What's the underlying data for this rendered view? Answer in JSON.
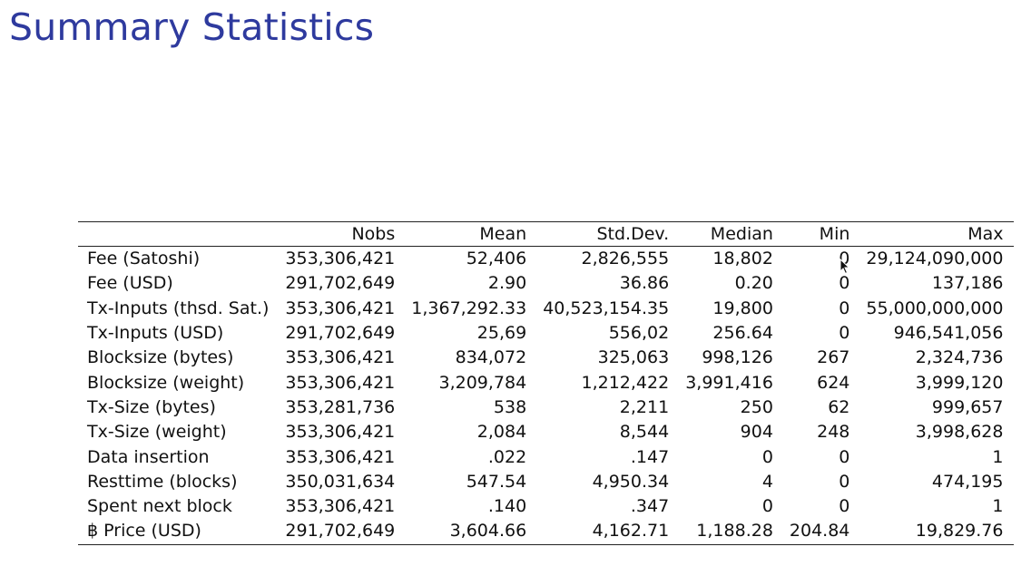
{
  "title": "Summary Statistics",
  "table": {
    "headers": [
      "",
      "Nobs",
      "Mean",
      "Std.Dev.",
      "Median",
      "Min",
      "Max"
    ],
    "rows": [
      [
        "Fee (Satoshi)",
        "353,306,421",
        "52,406",
        "2,826,555",
        "18,802",
        "0",
        "29,124,090,000"
      ],
      [
        "Fee (USD)",
        "291,702,649",
        "2.90",
        "36.86",
        "0.20",
        "0",
        "137,186"
      ],
      [
        "Tx-Inputs (thsd. Sat.)",
        "353,306,421",
        "1,367,292.33",
        "40,523,154.35",
        "19,800",
        "0",
        "55,000,000,000"
      ],
      [
        "Tx-Inputs (USD)",
        "291,702,649",
        "25,69",
        "556,02",
        "256.64",
        "0",
        "946,541,056"
      ],
      [
        "Blocksize (bytes)",
        "353,306,421",
        "834,072",
        "325,063",
        "998,126",
        "267",
        "2,324,736"
      ],
      [
        "Blocksize (weight)",
        "353,306,421",
        "3,209,784",
        "1,212,422",
        "3,991,416",
        "624",
        "3,999,120"
      ],
      [
        "Tx-Size (bytes)",
        "353,281,736",
        "538",
        "2,211",
        "250",
        "62",
        "999,657"
      ],
      [
        "Tx-Size (weight)",
        "353,306,421",
        "2,084",
        "8,544",
        "904",
        "248",
        "3,998,628"
      ],
      [
        "Data insertion",
        "353,306,421",
        ".022",
        ".147",
        "0",
        "0",
        "1"
      ],
      [
        "Resttime (blocks)",
        "350,031,634",
        "547.54",
        "4,950.34",
        "4",
        "0",
        "474,195"
      ],
      [
        "Spent next block",
        "353,306,421",
        ".140",
        ".347",
        "0",
        "0",
        "1"
      ],
      [
        "฿ Price (USD)",
        "291,702,649",
        "3,604.66",
        "4,162.71",
        "1,188.28",
        "204.84",
        "19,829.76"
      ]
    ]
  },
  "colors": {
    "title": "#2e3a9e",
    "text": "#111111",
    "rule": "#222222",
    "background": "#ffffff"
  },
  "icons": {
    "cursor": "mouse-pointer-icon"
  }
}
